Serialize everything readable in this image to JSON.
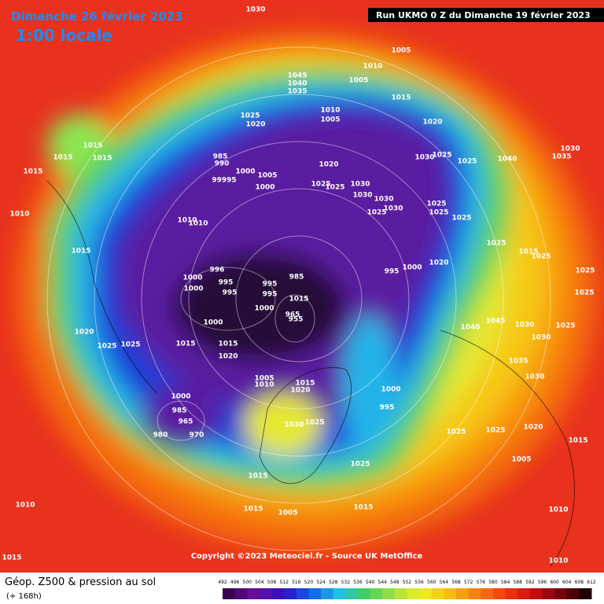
{
  "header": {
    "date": "Dimanche 26 février 2023",
    "time": "1:00 locale",
    "run": "Run UKMO 0 Z du Dimanche 19 février 2023"
  },
  "map": {
    "copyright": "Copyright ©2023 Meteociel.fr - Source UK MetOffice",
    "isobar_labels": [
      "1030",
      "1005",
      "1010",
      "1005",
      "1045",
      "1040",
      "1035",
      "1025",
      "1020",
      "1010",
      "1005",
      "1015",
      "1020",
      "1015",
      "1015",
      "1015",
      "1015",
      "985",
      "990",
      "99995",
      "1000",
      "1005",
      "1000",
      "1020",
      "1025",
      "1025",
      "1030",
      "1030",
      "1030",
      "1025",
      "1030",
      "1025",
      "1025",
      "1025",
      "1030",
      "1025",
      "1025",
      "1040",
      "1030",
      "1035",
      "1010",
      "1010",
      "1010",
      "1015",
      "1025",
      "1020",
      "995",
      "1000",
      "1015",
      "1025",
      "1025",
      "1025",
      "1000",
      "1000",
      "996",
      "995",
      "995",
      "985",
      "995",
      "995",
      "1000",
      "965",
      "955",
      "1000",
      "1020",
      "1025",
      "1025",
      "1015",
      "1015",
      "1020",
      "1045",
      "1040",
      "1030",
      "1030",
      "1025",
      "1035",
      "1030",
      "1005",
      "1010",
      "1015",
      "1020",
      "1000",
      "995",
      "1000",
      "985",
      "965",
      "980",
      "970",
      "1030",
      "1025",
      "1025",
      "1025",
      "1020",
      "1015",
      "1025",
      "1015",
      "1005",
      "1015",
      "1005",
      "1015",
      "1010",
      "1015",
      "1010",
      "1010",
      "1015"
    ]
  },
  "legend": {
    "title": "Géop. Z500 & pression au sol",
    "subtitle": "(+ 168h)",
    "ticks": [
      492,
      496,
      500,
      504,
      508,
      512,
      516,
      520,
      524,
      528,
      532,
      536,
      540,
      544,
      548,
      552,
      556,
      560,
      564,
      568,
      572,
      576,
      580,
      584,
      588,
      592,
      596,
      600,
      604,
      608,
      612
    ]
  }
}
